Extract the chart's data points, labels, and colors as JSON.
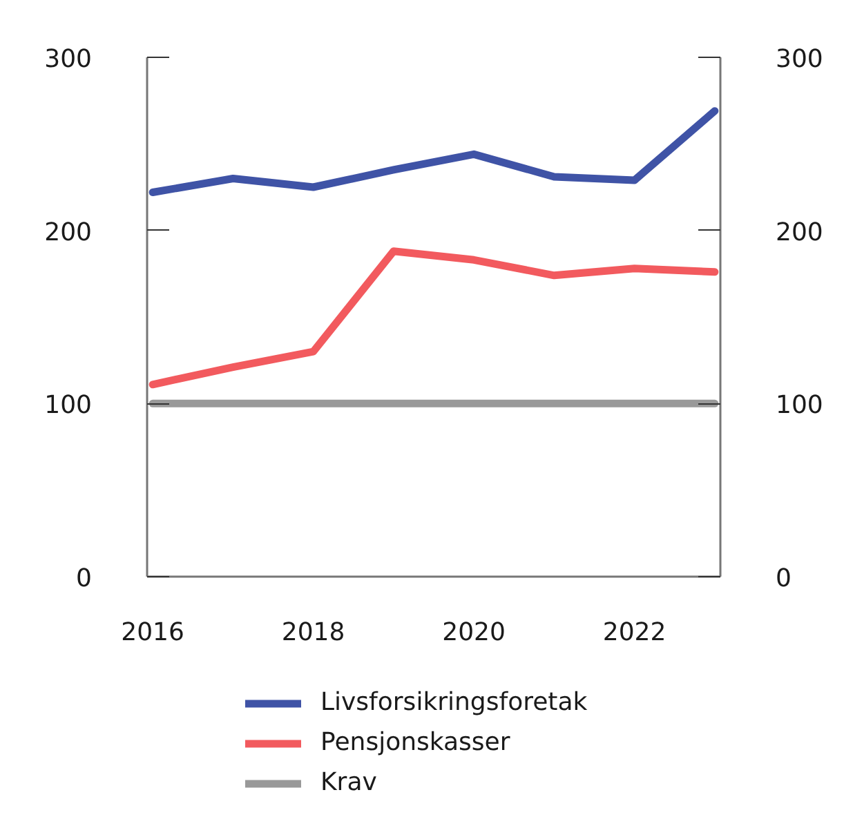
{
  "chart_data": {
    "type": "line",
    "x": [
      2016,
      2017,
      2018,
      2019,
      2020,
      2021,
      2022,
      2023
    ],
    "xlim": [
      2015.93,
      2023.07
    ],
    "xticks": [
      2016,
      2018,
      2020,
      2022
    ],
    "ylim": [
      0,
      300
    ],
    "yticks": [
      0,
      100,
      200,
      300
    ],
    "y2lim": [
      0,
      300
    ],
    "y2ticks": [
      0,
      100,
      200,
      300
    ],
    "legend": "bottom",
    "marker": "none",
    "line_style": "solid",
    "series": [
      {
        "name": "Livsforsikringsforetak",
        "color": "#3f53a6",
        "values": [
          222,
          230,
          225,
          235,
          244,
          231,
          229,
          269
        ]
      },
      {
        "name": "Pensjonskasser",
        "color": "#f25a5e",
        "values": [
          111,
          121,
          130,
          188,
          183,
          174,
          178,
          176
        ]
      },
      {
        "name": "Krav",
        "color": "#999999",
        "values": [
          100,
          100,
          100,
          100,
          100,
          100,
          100,
          100
        ]
      }
    ]
  }
}
